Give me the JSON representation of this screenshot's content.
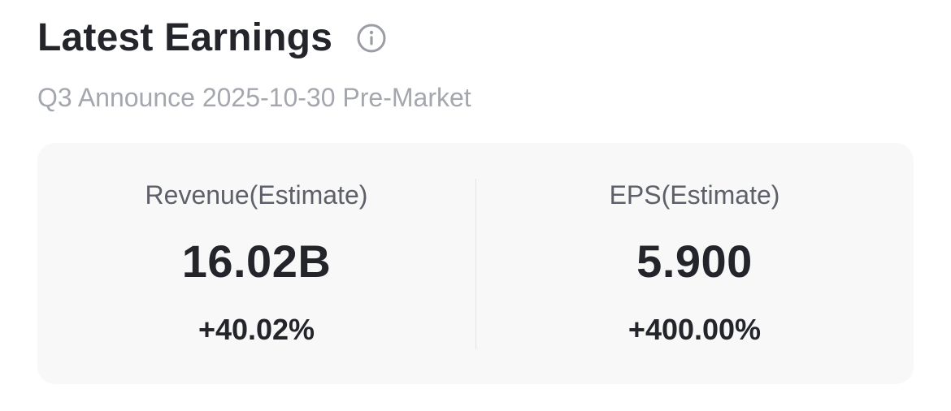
{
  "header": {
    "title": "Latest Earnings",
    "info_icon": "info-icon"
  },
  "subtitle": "Q3 Announce 2025-10-30 Pre-Market",
  "metrics": [
    {
      "label": "Revenue(Estimate)",
      "value": "16.02B",
      "change": "+40.02%"
    },
    {
      "label": "EPS(Estimate)",
      "value": "5.900",
      "change": "+400.00%"
    }
  ],
  "colors": {
    "text_primary": "#23252b",
    "text_muted": "#a4a7ae",
    "card_background": "#f8f8f9"
  }
}
